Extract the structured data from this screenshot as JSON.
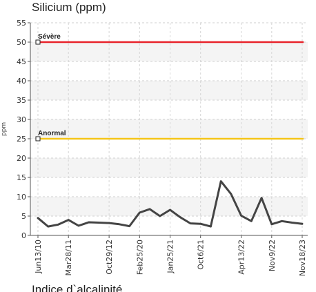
{
  "chart_data": {
    "type": "line",
    "title": "Silicium (ppm)",
    "ylabel": "ppm",
    "xlabel": "",
    "ylim": [
      0,
      55
    ],
    "yticks": [
      0,
      5,
      10,
      15,
      20,
      25,
      30,
      35,
      40,
      45,
      50,
      55
    ],
    "grid": true,
    "xtick_labels": [
      "Jun13/10",
      "Mar28/11",
      "Oct29/12",
      "Feb25/20",
      "Jan25/21",
      "Oct6/21",
      "Apr13/22",
      "Nov9/22",
      "Nov18/23"
    ],
    "reference_lines": [
      {
        "label": "Sévère",
        "value": 50,
        "color": "#e8222a"
      },
      {
        "label": "Anormal",
        "value": 25,
        "color": "#f5c518"
      }
    ],
    "series": [
      {
        "color": "#444444",
        "values": [
          4.5,
          2.3,
          2.8,
          4.0,
          2.5,
          3.4,
          3.3,
          3.2,
          2.9,
          2.4,
          5.9,
          6.8,
          5.0,
          6.6,
          4.7,
          3.1,
          3.0,
          2.3,
          14.0,
          10.7,
          5.1,
          3.7,
          9.7,
          2.9,
          3.7,
          3.3,
          3.0
        ]
      }
    ]
  },
  "next_chart_title": "Indice d`alcalinité"
}
